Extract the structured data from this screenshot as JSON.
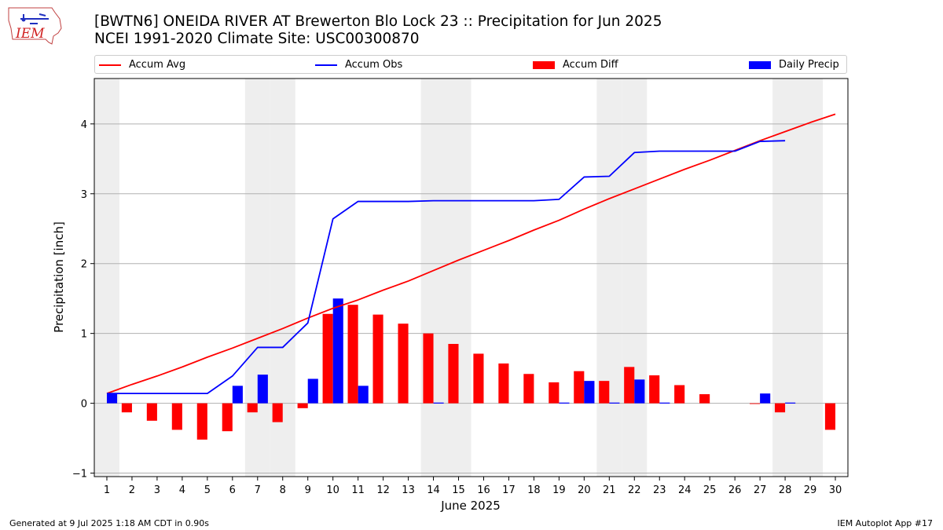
{
  "logo": {
    "text": "IEM"
  },
  "header": {
    "title_line1": "[BWTN6] ONEIDA RIVER  AT Brewerton Blo Lock 23 :: Precipitation for Jun 2025",
    "title_line2": "NCEI 1991-2020 Climate Site: USC00300870"
  },
  "legend": {
    "accum_avg": "Accum Avg",
    "accum_obs": "Accum Obs",
    "accum_diff": "Accum Diff",
    "daily_precip": "Daily Precip"
  },
  "footer": {
    "generated": "Generated at 9 Jul 2025 1:18 AM CDT in 0.90s",
    "app": "IEM Autoplot App #17"
  },
  "chart_data": {
    "type": "bar",
    "title": "[BWTN6] ONEIDA RIVER  AT Brewerton Blo Lock 23 :: Precipitation for Jun 2025",
    "subtitle": "NCEI 1991-2020 Climate Site: USC00300870",
    "xlabel": "June 2025",
    "ylabel": "Precipitation [inch]",
    "ylim": [
      -1.05,
      4.65
    ],
    "xlim": [
      0.5,
      30.5
    ],
    "yticks": [
      -1,
      0,
      1,
      2,
      3,
      4
    ],
    "grid": "horizontal",
    "legend_placement": "top",
    "weekend_shading_days": [
      1,
      7,
      8,
      14,
      15,
      21,
      22,
      28,
      29
    ],
    "colors": {
      "accum_avg": "#ff0000",
      "accum_obs": "#0000ff",
      "accum_diff": "#ff0000",
      "daily_precip": "#0000ff",
      "weekend": "#eeeeee"
    },
    "categories": [
      1,
      2,
      3,
      4,
      5,
      6,
      7,
      8,
      9,
      10,
      11,
      12,
      13,
      14,
      15,
      16,
      17,
      18,
      19,
      20,
      21,
      22,
      23,
      24,
      25,
      26,
      27,
      28,
      29,
      30
    ],
    "series": [
      {
        "name": "Accum Avg",
        "type": "line",
        "values": [
          0.14,
          0.27,
          0.39,
          0.52,
          0.66,
          0.79,
          0.93,
          1.07,
          1.22,
          1.36,
          1.48,
          1.62,
          1.75,
          1.9,
          2.05,
          2.19,
          2.33,
          2.48,
          2.62,
          2.78,
          2.93,
          3.07,
          3.21,
          3.35,
          3.48,
          3.62,
          3.76,
          3.89,
          4.02,
          4.14
        ]
      },
      {
        "name": "Accum Obs",
        "type": "line",
        "values": [
          0.14,
          0.14,
          0.14,
          0.14,
          0.14,
          0.39,
          0.8,
          0.8,
          1.15,
          2.64,
          2.89,
          2.89,
          2.89,
          2.9,
          2.9,
          2.9,
          2.9,
          2.9,
          2.92,
          3.24,
          3.25,
          3.59,
          3.61,
          3.61,
          3.61,
          3.61,
          3.75,
          3.76,
          null,
          null
        ]
      },
      {
        "name": "Accum Diff",
        "type": "bar",
        "values": [
          0.0,
          -0.13,
          -0.25,
          -0.38,
          -0.52,
          -0.4,
          -0.13,
          -0.27,
          -0.07,
          1.28,
          1.41,
          1.27,
          1.14,
          1.0,
          0.85,
          0.71,
          0.57,
          0.42,
          0.3,
          0.46,
          0.32,
          0.52,
          0.4,
          0.26,
          0.13,
          0.0,
          -0.01,
          -0.13,
          null,
          -0.38
        ]
      },
      {
        "name": "Daily Precip",
        "type": "bar",
        "values": [
          0.14,
          0.0,
          0.0,
          0.0,
          0.0,
          0.25,
          0.41,
          0.0,
          0.35,
          1.5,
          0.25,
          0.0,
          0.0,
          0.01,
          0.0,
          0.0,
          0.0,
          0.0,
          0.01,
          0.32,
          0.01,
          0.34,
          0.01,
          0.0,
          0.0,
          0.0,
          0.14,
          0.01,
          null,
          null
        ]
      }
    ]
  }
}
